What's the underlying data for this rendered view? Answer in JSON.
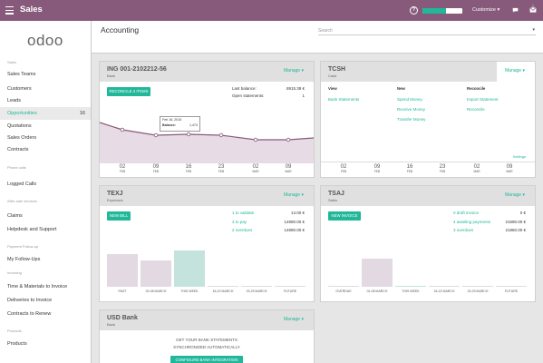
{
  "topbar": {
    "title": "Sales",
    "customize": "Customize",
    "progress_fraction": 0.6,
    "mail_count": "1"
  },
  "sidebar": {
    "logo": "odoo",
    "items": [
      {
        "label": "Sales",
        "section": true
      },
      {
        "label": "Sales Teams"
      },
      {
        "label": "Customers"
      },
      {
        "label": "Leads"
      },
      {
        "label": "Opportunities",
        "count": "16",
        "active": true
      },
      {
        "label": "Quotations"
      },
      {
        "label": "Sales Orders"
      },
      {
        "label": "Contracts"
      },
      {
        "label": "Phone calls",
        "section": true
      },
      {
        "label": "Logged Calls"
      },
      {
        "label": "After-sale services",
        "section": true
      },
      {
        "label": "Claims"
      },
      {
        "label": "Helpdesk and Support"
      },
      {
        "label": "Payment Follow-up",
        "section": true
      },
      {
        "label": "My Follow-Ups"
      },
      {
        "label": "Invoicing",
        "section": true
      },
      {
        "label": "Time & Materials to Invoice"
      },
      {
        "label": "Deliveries to Invoice"
      },
      {
        "label": "Contracts to Renew"
      },
      {
        "label": "Products",
        "section": true
      },
      {
        "label": "Products"
      }
    ]
  },
  "control": {
    "breadcrumb": "Accounting",
    "search_placeholder": "Search"
  },
  "bank": {
    "title": "ING 001-2102212-56",
    "subtitle": "Bank",
    "manage": "Manage",
    "reconcile_btn": "RECONCILE 4 ITEMS",
    "last_balance_label": "Last balance:",
    "last_balance": "8915.38 €",
    "open_label": "Open statements:",
    "open_value": "1",
    "tooltip_date": "Feb 16, 2015",
    "tooltip_label": "Balance:",
    "tooltip_value": "1,474",
    "ticks": [
      {
        "d": "02",
        "m": "FEB"
      },
      {
        "d": "09",
        "m": "FEB"
      },
      {
        "d": "16",
        "m": "FEB"
      },
      {
        "d": "23",
        "m": "FEB"
      },
      {
        "d": "02",
        "m": "MAR"
      },
      {
        "d": "09",
        "m": "MAR"
      }
    ]
  },
  "cash": {
    "title": "TCSH",
    "subtitle": "Cash",
    "manage": "Manage",
    "col_view": "View",
    "col_new": "New",
    "col_reconcile": "Reconcile",
    "view_links": [
      "Bank Statements"
    ],
    "new_links": [
      "Spend Money",
      "Receive Money",
      "Transfer Money"
    ],
    "reconcile_links": [
      "Import Statement",
      "Reconcile"
    ],
    "settings": "Settings",
    "ticks": [
      {
        "d": "02",
        "m": "FEB"
      },
      {
        "d": "09",
        "m": "FEB"
      },
      {
        "d": "16",
        "m": "FEB"
      },
      {
        "d": "23",
        "m": "FEB"
      },
      {
        "d": "02",
        "m": "MAR"
      },
      {
        "d": "09",
        "m": "MAR"
      }
    ]
  },
  "expenses": {
    "title": "TEXJ",
    "subtitle": "Expenses",
    "manage": "Manage",
    "btn": "NEW BILL",
    "rows": [
      {
        "label": "1 to validate",
        "value": "14.00 €"
      },
      {
        "label": "3 to pay",
        "value": "14990.00 €"
      },
      {
        "label": "2 overdues",
        "value": "14990.00 €"
      }
    ],
    "bars": [
      {
        "label": "PAST",
        "v": 0.72,
        "color": "#e3d9e3"
      },
      {
        "label": "02-08 MARCH",
        "v": 0.58,
        "color": "#e3d9e3"
      },
      {
        "label": "THIS WEEK",
        "v": 0.8,
        "color": "#c3e3dc"
      },
      {
        "label": "16-22 MARCH",
        "v": 0.03,
        "color": "#e3d9e3"
      },
      {
        "label": "23-29 MARCH",
        "v": 0.03,
        "color": "#e3d9e3"
      },
      {
        "label": "FUTURE",
        "v": 0.03,
        "color": "#e3d9e3"
      }
    ]
  },
  "sales": {
    "title": "TSAJ",
    "subtitle": "Sales",
    "manage": "Manage",
    "btn": "NEW INVOICE",
    "rows": [
      {
        "label": "0 draft invoice",
        "value": "0 €"
      },
      {
        "label": "4 awaiting payments",
        "value": "21690.00 €"
      },
      {
        "label": "3 overdues",
        "value": "21860.00 €"
      }
    ],
    "bars": [
      {
        "label": "OVERDUE",
        "v": 0.03,
        "color": "#e3d9e3"
      },
      {
        "label": "01-08 MARCH",
        "v": 0.62,
        "color": "#e3d9e3"
      },
      {
        "label": "THIS WEEK",
        "v": 0.03,
        "color": "#c3e3dc"
      },
      {
        "label": "16-22 MARCH",
        "v": 0.03,
        "color": "#e3d9e3"
      },
      {
        "label": "23-29 MARCH",
        "v": 0.03,
        "color": "#e3d9e3"
      },
      {
        "label": "FUTURE",
        "v": 0.03,
        "color": "#e3d9e3"
      }
    ]
  },
  "usd": {
    "title": "USD Bank",
    "subtitle": "Bank",
    "manage": "Manage",
    "msg1": "GET YOUR BANK STATEMENTS",
    "msg2": "SYNCHRONIZED AUTOMATICALLY",
    "btn": "CONFIGURE BANK INTEGRATION"
  },
  "colors": {
    "brand": "#875a7b",
    "accent": "#21b799"
  }
}
